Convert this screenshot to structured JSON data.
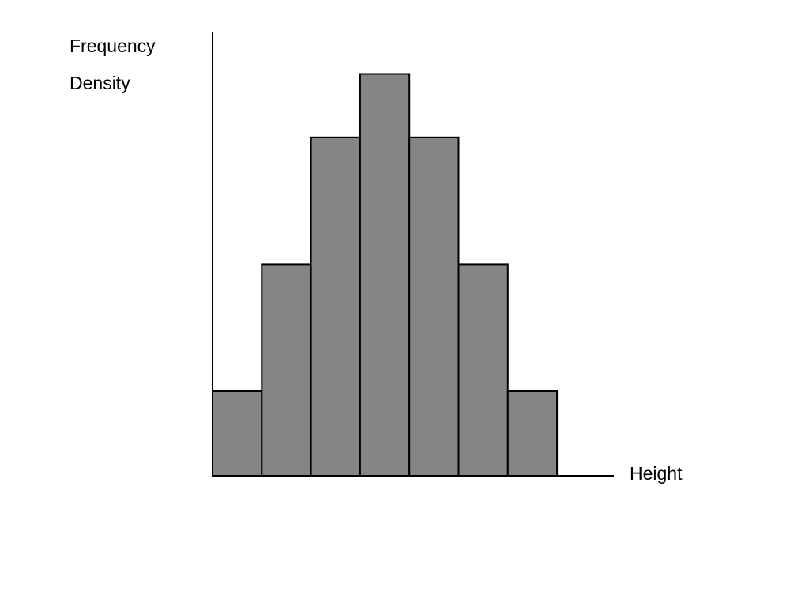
{
  "chart_data": {
    "type": "bar",
    "ylabel_lines": [
      "Frequency",
      "Density"
    ],
    "xlabel": "Height",
    "values": [
      1,
      2.5,
      4,
      4.75,
      4,
      2.5,
      1
    ],
    "bar_widths": [
      1,
      1,
      1,
      1,
      1,
      1,
      1
    ],
    "ylim": [
      0,
      5.25
    ],
    "bar_color": "#858585",
    "edge_color": "#000000",
    "axis_color": "#000000",
    "grid": false,
    "legend": "none"
  }
}
